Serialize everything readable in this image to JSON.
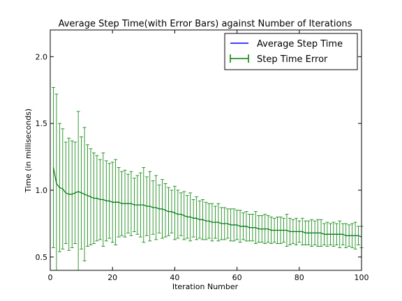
{
  "chart_data": {
    "type": "line",
    "title": "Average Step Time(with Error Bars) against Number of Iterations",
    "xlabel": "Iteration Number",
    "ylabel": "Time (in milliseconds)",
    "xlim": [
      0,
      100
    ],
    "ylim": [
      0.4,
      2.2
    ],
    "xticks": [
      "0",
      "20",
      "40",
      "60",
      "80",
      "100"
    ],
    "yticks": [
      "0.5",
      "1.0",
      "1.5",
      "2.0"
    ],
    "grid": false,
    "legend_position": "top-right",
    "legend": [
      "Average Step Time",
      "Step Time Error"
    ],
    "colors": {
      "mean_line": "#0000ff",
      "error": "#008000"
    },
    "series": [
      {
        "name": "Average Step Time",
        "x": [
          1,
          2,
          3,
          4,
          5,
          6,
          7,
          8,
          9,
          10,
          11,
          12,
          13,
          14,
          15,
          16,
          17,
          18,
          19,
          20,
          21,
          22,
          23,
          24,
          25,
          26,
          27,
          28,
          29,
          30,
          31,
          32,
          33,
          34,
          35,
          36,
          37,
          38,
          39,
          40,
          41,
          42,
          43,
          44,
          45,
          46,
          47,
          48,
          49,
          50,
          51,
          52,
          53,
          54,
          55,
          56,
          57,
          58,
          59,
          60,
          61,
          62,
          63,
          64,
          65,
          66,
          67,
          68,
          69,
          70,
          71,
          72,
          73,
          74,
          75,
          76,
          77,
          78,
          79,
          80,
          81,
          82,
          83,
          84,
          85,
          86,
          87,
          88,
          89,
          90,
          91,
          92,
          93,
          94,
          95,
          96,
          97,
          98,
          99,
          100
        ],
        "y": [
          1.17,
          1.05,
          1.02,
          1.01,
          0.98,
          0.97,
          0.97,
          0.98,
          0.99,
          0.98,
          0.97,
          0.96,
          0.95,
          0.94,
          0.94,
          0.93,
          0.93,
          0.92,
          0.92,
          0.91,
          0.91,
          0.91,
          0.9,
          0.9,
          0.9,
          0.9,
          0.89,
          0.89,
          0.89,
          0.89,
          0.88,
          0.88,
          0.87,
          0.87,
          0.86,
          0.86,
          0.85,
          0.84,
          0.84,
          0.83,
          0.82,
          0.82,
          0.81,
          0.8,
          0.8,
          0.79,
          0.79,
          0.78,
          0.78,
          0.77,
          0.77,
          0.76,
          0.76,
          0.76,
          0.75,
          0.75,
          0.75,
          0.74,
          0.74,
          0.74,
          0.73,
          0.73,
          0.73,
          0.72,
          0.72,
          0.72,
          0.71,
          0.71,
          0.71,
          0.71,
          0.7,
          0.7,
          0.7,
          0.7,
          0.7,
          0.7,
          0.69,
          0.69,
          0.69,
          0.69,
          0.69,
          0.68,
          0.68,
          0.68,
          0.68,
          0.68,
          0.68,
          0.67,
          0.67,
          0.67,
          0.67,
          0.67,
          0.67,
          0.67,
          0.66,
          0.66,
          0.66,
          0.66,
          0.66,
          0.65
        ],
        "error": [
          0.6,
          0.67,
          0.48,
          0.45,
          0.38,
          0.42,
          0.4,
          0.38,
          0.6,
          0.42,
          0.5,
          0.38,
          0.36,
          0.34,
          0.32,
          0.3,
          0.35,
          0.3,
          0.28,
          0.3,
          0.32,
          0.26,
          0.24,
          0.25,
          0.22,
          0.24,
          0.2,
          0.22,
          0.24,
          0.28,
          0.22,
          0.26,
          0.2,
          0.24,
          0.18,
          0.22,
          0.2,
          0.18,
          0.16,
          0.2,
          0.18,
          0.16,
          0.18,
          0.16,
          0.18,
          0.14,
          0.16,
          0.14,
          0.15,
          0.14,
          0.13,
          0.14,
          0.12,
          0.14,
          0.12,
          0.12,
          0.11,
          0.12,
          0.12,
          0.11,
          0.12,
          0.1,
          0.11,
          0.1,
          0.1,
          0.12,
          0.1,
          0.1,
          0.11,
          0.1,
          0.1,
          0.09,
          0.1,
          0.1,
          0.09,
          0.12,
          0.1,
          0.09,
          0.1,
          0.08,
          0.1,
          0.09,
          0.09,
          0.1,
          0.09,
          0.1,
          0.1,
          0.08,
          0.09,
          0.08,
          0.09,
          0.08,
          0.1,
          0.08,
          0.09,
          0.08,
          0.09,
          0.1,
          0.07,
          0.08
        ]
      }
    ]
  }
}
